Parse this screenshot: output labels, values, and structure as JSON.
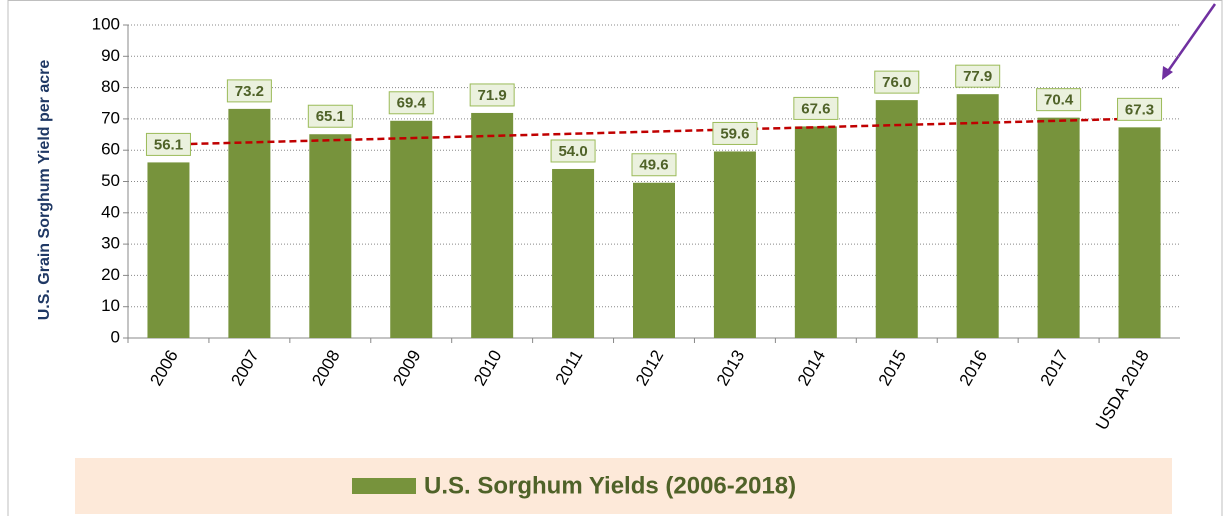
{
  "chart_data": {
    "type": "bar",
    "y_axis_label": "U.S. Grain Sorghum Yield per acre",
    "categories": [
      "2006",
      "2007",
      "2008",
      "2009",
      "2010",
      "2011",
      "2012",
      "2013",
      "2014",
      "2015",
      "2016",
      "2017",
      "USDA 2018"
    ],
    "series": [
      {
        "name": "U.S. Sorghum Yields (2006-2018)",
        "color": "#77933c",
        "values": [
          56.1,
          73.2,
          65.1,
          69.4,
          71.9,
          54.0,
          49.6,
          59.6,
          67.6,
          76.0,
          77.9,
          70.4,
          67.3
        ],
        "value_labels": [
          "56.1",
          "73.2",
          "65.1",
          "69.4",
          "71.9",
          "54.0",
          "49.6",
          "59.6",
          "67.6",
          "76.0",
          "77.9",
          "70.4",
          "67.3"
        ]
      }
    ],
    "trendline": {
      "color": "#c00000",
      "values": [
        61.8,
        70.1
      ]
    },
    "ylim": [
      0,
      100
    ],
    "yticks": [
      0,
      10,
      20,
      30,
      40,
      50,
      60,
      70,
      80,
      90,
      100
    ],
    "grid": true
  }
}
